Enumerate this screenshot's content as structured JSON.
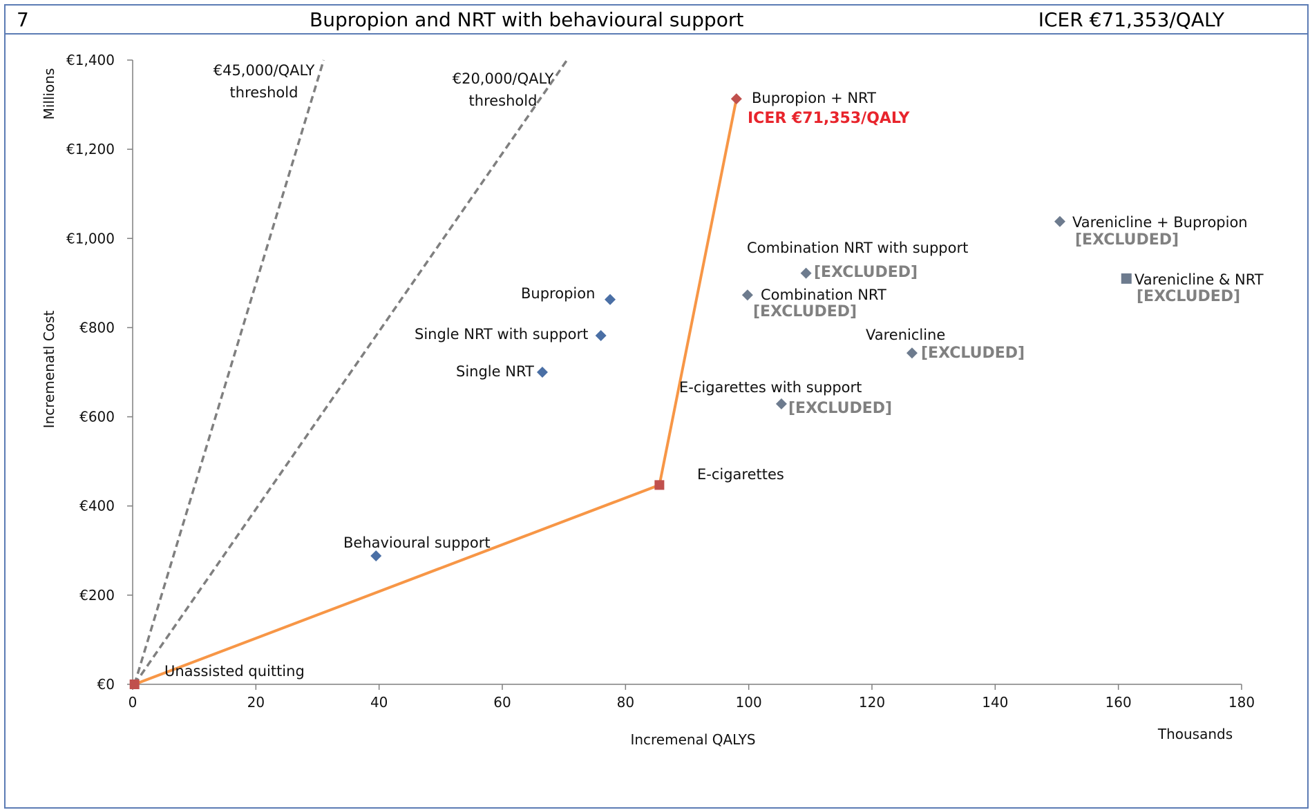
{
  "header": {
    "number": "7",
    "title": "Bupropion and NRT with behavioural support",
    "icer": "ICER €71,353/QALY"
  },
  "chart_data": {
    "type": "scatter",
    "xlabel": "Incremenal QALYS",
    "x_unit_label": "Thousands",
    "ylabel": "Incremenatl Cost",
    "y_unit_label": "Millions",
    "xlim": [
      0,
      180
    ],
    "ylim": [
      0,
      1400
    ],
    "x_ticks": [
      0,
      20,
      40,
      60,
      80,
      100,
      120,
      140,
      160,
      180
    ],
    "x_tick_labels": [
      "0",
      "20",
      "40",
      "60",
      "80",
      "100",
      "120",
      "140",
      "160",
      "180"
    ],
    "y_ticks": [
      0,
      200,
      400,
      600,
      800,
      1000,
      1200,
      1400
    ],
    "y_tick_labels": [
      "€0",
      "€200",
      "€400",
      "€600",
      "€800",
      "€1,000",
      "€1,200",
      "€1,400"
    ],
    "grid": false,
    "colors": {
      "point": "#4a6fa5",
      "excluded_point": "#6d7b8e",
      "frontier_point": "#c0504d",
      "frontier_line": "#f79646",
      "threshold_line": "#7f7f7f",
      "excluded_text": "#808080",
      "icer_text": "#e8242c",
      "frame": "#5b7bb4"
    },
    "points": [
      {
        "label": "Unassisted quitting",
        "x": 0.3,
        "y": 0,
        "marker": "square",
        "frontier": true,
        "excluded": false
      },
      {
        "label": "Behavioural support",
        "x": 39.5,
        "y": 288,
        "marker": "diamond",
        "frontier": false,
        "excluded": false
      },
      {
        "label": "Single NRT",
        "x": 66.5,
        "y": 700,
        "marker": "diamond",
        "frontier": false,
        "excluded": false
      },
      {
        "label": "Single NRT with support",
        "x": 76,
        "y": 782,
        "marker": "diamond",
        "frontier": false,
        "excluded": false
      },
      {
        "label": "Bupropion",
        "x": 77.5,
        "y": 863,
        "marker": "diamond",
        "frontier": false,
        "excluded": false
      },
      {
        "label": "E-cigarettes",
        "x": 85.5,
        "y": 447,
        "marker": "square",
        "frontier": true,
        "excluded": false
      },
      {
        "label": "Bupropion + NRT",
        "x": 98,
        "y": 1313,
        "marker": "diamond",
        "frontier": true,
        "excluded": false,
        "note": "ICER €71,353/QALY"
      },
      {
        "label": "Combination NRT",
        "x": 99.8,
        "y": 873,
        "marker": "diamond",
        "frontier": false,
        "excluded": true,
        "note": "[EXCLUDED]"
      },
      {
        "label": "E-cigarettes with support",
        "x": 105.3,
        "y": 629,
        "marker": "diamond",
        "frontier": false,
        "excluded": true,
        "note": "[EXCLUDED]"
      },
      {
        "label": "Combination NRT with support",
        "x": 109.3,
        "y": 922,
        "marker": "diamond",
        "frontier": false,
        "excluded": true,
        "note": "[EXCLUDED]"
      },
      {
        "label": "Varenicline",
        "x": 126.5,
        "y": 743,
        "marker": "diamond",
        "frontier": false,
        "excluded": true,
        "note": "[EXCLUDED]"
      },
      {
        "label": "Varenicline + Bupropion",
        "x": 150.5,
        "y": 1038,
        "marker": "diamond",
        "frontier": false,
        "excluded": true,
        "note": "[EXCLUDED]"
      },
      {
        "label": "Varenicline & NRT",
        "x": 161.3,
        "y": 910,
        "marker": "square",
        "frontier": false,
        "excluded": true,
        "note": "[EXCLUDED]"
      }
    ],
    "frontier": [
      {
        "x": 0.3,
        "y": 0
      },
      {
        "x": 85.5,
        "y": 447
      },
      {
        "x": 98,
        "y": 1313
      }
    ],
    "thresholds": [
      {
        "label_line1": "€45,000/QALY",
        "label_line2": "threshold",
        "from": {
          "x": 0.3,
          "y": 0
        },
        "to": {
          "x": 31,
          "y": 1400
        }
      },
      {
        "label_line1": "€20,000/QALY",
        "label_line2": "threshold",
        "from": {
          "x": 0.3,
          "y": 0
        },
        "to": {
          "x": 70.5,
          "y": 1400
        }
      }
    ]
  }
}
